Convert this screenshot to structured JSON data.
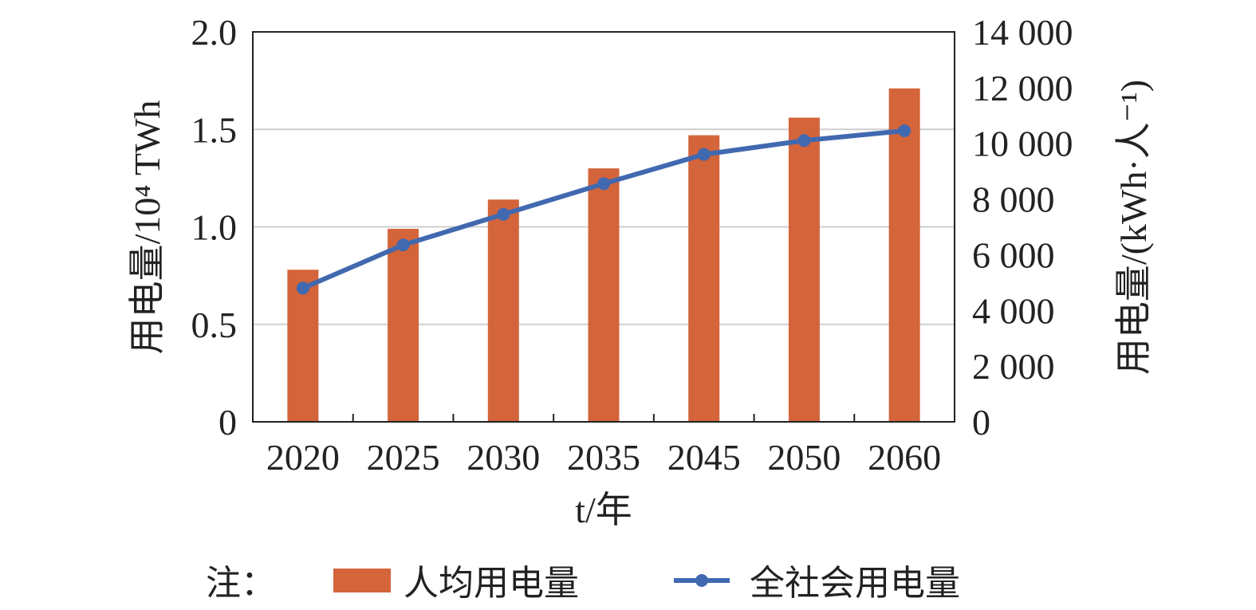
{
  "chart_data": {
    "type": "bar",
    "categories": [
      "2020",
      "2025",
      "2030",
      "2035",
      "2045",
      "2050",
      "2060"
    ],
    "series": [
      {
        "name": "人均用电量",
        "type": "bar",
        "axis": "left",
        "color": "#D4643A",
        "values": [
          0.78,
          0.99,
          1.14,
          1.3,
          1.47,
          1.56,
          1.71
        ]
      },
      {
        "name": "全社会用电量",
        "type": "line",
        "axis": "right",
        "color": "#4169B0",
        "values": [
          4800,
          6350,
          7450,
          8550,
          9600,
          10100,
          10450
        ]
      }
    ],
    "xlabel": "t/年",
    "ylabel_left": "用电量/10⁴ TWh",
    "ylabel_right": "用电量/(kWh·人⁻¹)",
    "ylim_left": [
      0,
      2.0
    ],
    "ylim_right": [
      0,
      14000
    ],
    "yticks_left": [
      "0",
      "0.5",
      "1.0",
      "1.5",
      "2.0"
    ],
    "yticks_right": [
      "0",
      "2 000",
      "4 000",
      "6 000",
      "8 000",
      "10 000",
      "12 000",
      "14 000"
    ],
    "grid": true,
    "legend_position": "bottom"
  },
  "legend": {
    "prefix": "注："
  }
}
